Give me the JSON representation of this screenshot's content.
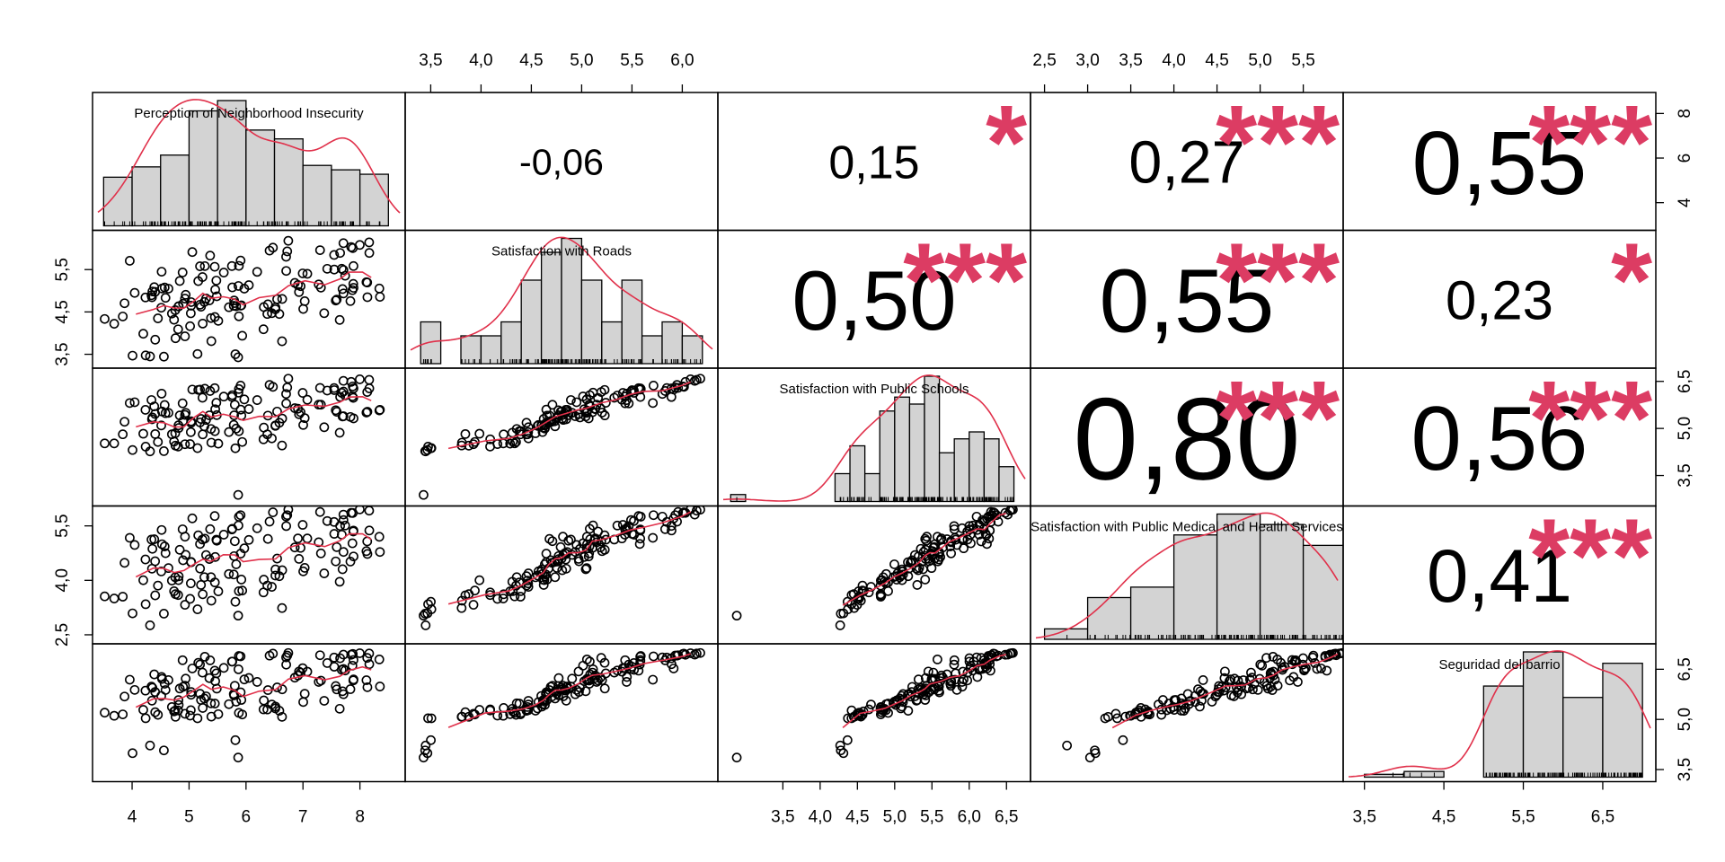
{
  "chart_data": {
    "type": "scatter",
    "title": "",
    "variables": [
      "Perception of Neighborhood Insecurity",
      "Satisfaction with Roads",
      "Satisfaction with Public Schools",
      "Satisfaction with Public Medical and Health Services",
      "Seguridad del barrio"
    ],
    "ranges": [
      [
        3.4,
        8.7
      ],
      [
        3.3,
        6.3
      ],
      [
        2.7,
        6.75
      ],
      [
        2.4,
        5.9
      ],
      [
        3.3,
        7.1
      ]
    ],
    "ticks": [
      [
        4,
        5,
        6,
        7,
        8
      ],
      [
        3.5,
        4.0,
        4.5,
        5.0,
        5.5,
        6.0
      ],
      [
        3.5,
        4.0,
        4.5,
        5.0,
        5.5,
        6.0,
        6.5
      ],
      [
        2.5,
        3.0,
        3.5,
        4.0,
        4.5,
        5.0,
        5.5
      ],
      [
        3.5,
        4.5,
        5.5,
        6.5
      ]
    ],
    "tick_labels": [
      [
        "4",
        "5",
        "6",
        "7",
        "8"
      ],
      [
        "3,5",
        "4,0",
        "4,5",
        "5,0",
        "5,5",
        "6,0"
      ],
      [
        "3,5",
        "4,0",
        "4,5",
        "5,0",
        "5,5",
        "6,0",
        "6,5"
      ],
      [
        "2,5",
        "3,0",
        "3,5",
        "4,0",
        "4,5",
        "5,0",
        "5,5"
      ],
      [
        "3,5",
        "4,5",
        "5,5",
        "6,5"
      ]
    ],
    "left_axis": [
      {
        "row": 1,
        "ticks": [
          3.5,
          4.5,
          5.5
        ],
        "labels": [
          "3,5",
          "4,5",
          "5,5"
        ]
      },
      {
        "row": 3,
        "ticks": [
          2.5,
          4.0,
          5.5
        ],
        "labels": [
          "2,5",
          "4,0",
          "5,5"
        ]
      }
    ],
    "right_axis": [
      {
        "row": 0,
        "ticks": [
          4,
          6,
          8
        ],
        "labels": [
          "4",
          "6",
          "8"
        ],
        "range": [
          3.0,
          8.7
        ]
      },
      {
        "row": 2,
        "ticks": [
          3.5,
          5.0,
          6.5
        ],
        "labels": [
          "3,5",
          "5,0",
          "6,5"
        ]
      },
      {
        "row": 4,
        "ticks": [
          3.5,
          5.0,
          6.5
        ],
        "labels": [
          "3,5",
          "5,0",
          "6,5"
        ]
      }
    ],
    "correlations": [
      {
        "row": 0,
        "col": 1,
        "r": "-0,06",
        "stars": ""
      },
      {
        "row": 0,
        "col": 2,
        "r": "0,15",
        "stars": "*"
      },
      {
        "row": 0,
        "col": 3,
        "r": "0,27",
        "stars": "***"
      },
      {
        "row": 0,
        "col": 4,
        "r": "0,55",
        "stars": "***"
      },
      {
        "row": 1,
        "col": 2,
        "r": "0,50",
        "stars": "***"
      },
      {
        "row": 1,
        "col": 3,
        "r": "0,55",
        "stars": "***"
      },
      {
        "row": 1,
        "col": 4,
        "r": "0,23",
        "stars": "*"
      },
      {
        "row": 2,
        "col": 3,
        "r": "0,80",
        "stars": "***"
      },
      {
        "row": 2,
        "col": 4,
        "r": "0,56",
        "stars": "***"
      },
      {
        "row": 3,
        "col": 4,
        "r": "0,41",
        "stars": "***"
      }
    ],
    "histograms": [
      {
        "breaks": [
          3.5,
          4.0,
          4.5,
          5.0,
          5.5,
          6.0,
          6.5,
          7.0,
          7.5,
          8.0,
          8.5
        ],
        "counts": [
          3.3,
          4.0,
          4.8,
          7.8,
          8.5,
          6.5,
          5.9,
          4.1,
          3.8,
          3.5
        ]
      },
      {
        "breaks": [
          3.4,
          3.6,
          3.8,
          4.0,
          4.2,
          4.4,
          4.6,
          4.8,
          5.0,
          5.2,
          5.4,
          5.6,
          5.8,
          6.0,
          6.2
        ],
        "counts": [
          3,
          0,
          2,
          2,
          3,
          6,
          8,
          9,
          6,
          3,
          6,
          2,
          3,
          2
        ]
      },
      {
        "breaks": [
          2.8,
          3.0,
          4.2,
          4.4,
          4.6,
          4.8,
          5.0,
          5.2,
          5.4,
          5.6,
          5.8,
          6.0,
          6.2,
          6.4,
          6.6
        ],
        "counts": [
          1,
          0,
          4,
          8,
          4,
          13,
          15,
          14,
          18,
          7,
          9,
          10,
          9,
          5
        ]
      },
      {
        "breaks": [
          2.5,
          3.0,
          3.5,
          4.0,
          4.5,
          5.0,
          5.5,
          6.0
        ],
        "counts": [
          1,
          4,
          5,
          10,
          12,
          11,
          9
        ]
      },
      {
        "breaks": [
          3.5,
          4.0,
          4.5,
          5.0,
          5.5,
          6.0,
          6.5,
          7.0
        ],
        "counts": [
          0.5,
          1,
          0,
          16,
          22,
          14,
          20
        ]
      }
    ],
    "series_seed": 1847
  }
}
